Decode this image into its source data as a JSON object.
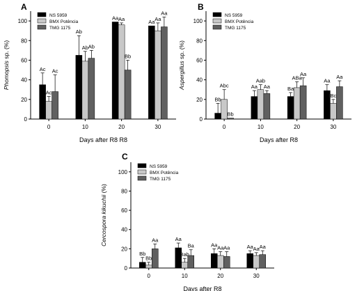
{
  "chart_data": [
    {
      "type": "bar",
      "panel_label": "A",
      "ylabel_italic": "Phomopsis",
      "ylabel_rest": " sp. (%)",
      "xlabel": "Days after R8 R8",
      "categories": [
        "0",
        "10",
        "20",
        "30"
      ],
      "ylim": [
        0,
        110
      ],
      "yticks": [
        0,
        20,
        40,
        60,
        80,
        100
      ],
      "legend_position": "top-left",
      "series": [
        {
          "name": "NS 5959",
          "color": "#000000",
          "values": [
            35,
            65,
            99,
            95
          ],
          "errors": [
            12,
            20,
            0,
            0
          ],
          "labels": [
            "Ac",
            "Ab",
            "Aa",
            "Aa"
          ]
        },
        {
          "name": "BMX Potência",
          "color": "#c8c8c8",
          "values": [
            18,
            59,
            96,
            90
          ],
          "errors": [
            5,
            10,
            2,
            8
          ],
          "labels": [
            "Ac",
            "Ab",
            "Aa",
            "Aa"
          ]
        },
        {
          "name": "TMG 1175",
          "color": "#606060",
          "values": [
            28,
            62,
            50,
            94
          ],
          "errors": [
            17,
            8,
            10,
            10
          ],
          "labels": [
            "Ac",
            "Ab",
            "Bb",
            "Aa"
          ]
        }
      ]
    },
    {
      "type": "bar",
      "panel_label": "B",
      "ylabel_italic": "Aspergillus",
      "ylabel_rest": " sp. (%)",
      "xlabel": "Days after R8",
      "categories": [
        "0",
        "10",
        "20",
        "30"
      ],
      "ylim": [
        0,
        110
      ],
      "yticks": [
        0,
        20,
        40,
        60,
        80,
        100
      ],
      "legend_position": "top-left",
      "series": [
        {
          "name": "NS 5959",
          "color": "#000000",
          "values": [
            6,
            23,
            23,
            29
          ],
          "errors": [
            10,
            6,
            4,
            6
          ],
          "labels": [
            "Bb",
            "Aa",
            "Ba",
            "Aa"
          ]
        },
        {
          "name": "BMX Potência",
          "color": "#c8c8c8",
          "values": [
            20,
            30,
            32,
            16
          ],
          "errors": [
            10,
            5,
            6,
            4
          ],
          "labels": [
            "Abc",
            "Aab",
            "ABa",
            "Bc"
          ]
        },
        {
          "name": "TMG 1175",
          "color": "#606060",
          "values": [
            1,
            26,
            34,
            33
          ],
          "errors": [
            0,
            3,
            8,
            6
          ],
          "labels": [
            "Bb",
            "Aa",
            "Aa",
            "Aa"
          ]
        }
      ]
    },
    {
      "type": "bar",
      "panel_label": "C",
      "ylabel_italic": "Cercospora kikuchii",
      "ylabel_rest": " (%)",
      "xlabel": "Days after R8",
      "categories": [
        "0",
        "10",
        "20",
        "30"
      ],
      "ylim": [
        0,
        110
      ],
      "yticks": [
        0,
        20,
        40,
        60,
        80,
        100
      ],
      "legend_position": "top-left",
      "series": [
        {
          "name": "NS 5959",
          "color": "#000000",
          "values": [
            6,
            21,
            15,
            15
          ],
          "errors": [
            5,
            5,
            5,
            3
          ],
          "labels": [
            "Bb",
            "Aa",
            "Aa",
            "Aa"
          ]
        },
        {
          "name": "BMX Potência",
          "color": "#c8c8c8",
          "values": [
            3,
            6,
            13,
            13
          ],
          "errors": [
            3,
            4,
            4,
            3
          ],
          "labels": [
            "Bb",
            "Bab",
            "Aa",
            "Aa"
          ]
        },
        {
          "name": "TMG 1175",
          "color": "#606060",
          "values": [
            20,
            13,
            12,
            14
          ],
          "errors": [
            5,
            6,
            5,
            4
          ],
          "labels": [
            "Aa",
            "Ba",
            "Aa",
            "Aa"
          ]
        }
      ]
    }
  ]
}
